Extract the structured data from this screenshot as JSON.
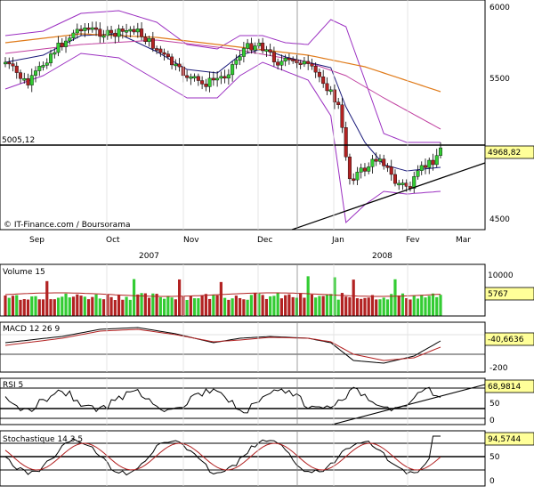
{
  "chart_data": {
    "type": "candlestick",
    "source": "© IT-Finance.com / Boursorama",
    "x_months": [
      "Sep",
      "Oct",
      "Nov",
      "Dec",
      "Jan",
      "Fev",
      "Mar"
    ],
    "x_years": [
      "2007",
      "2008"
    ],
    "price": {
      "yticks": [
        6000,
        5500,
        4500
      ],
      "hline_label": "5005,12",
      "last_label": "4968,82",
      "hline_value": 5005.12,
      "last_value": 4968.82,
      "ylim": [
        4400,
        6000
      ],
      "series_colors": {
        "up": "#33cc33",
        "down": "#b22222",
        "mm_long": "#e07b1a",
        "bollinger": "#9b2fc1",
        "mm_short": "#1a1a7a",
        "mm_mid": "#c040a0"
      }
    },
    "volume": {
      "title": "Volume 15",
      "ytick_label": "10000",
      "last_label": "5767"
    },
    "macd": {
      "title": "MACD 12 26 9",
      "last_label": "-40,6636",
      "ytick_label": "-200"
    },
    "rsi": {
      "title": "RSI 5",
      "last_label": "68,9814",
      "yticks": [
        "50",
        "0"
      ]
    },
    "stochastique": {
      "title": "Stochastique 14 3 5",
      "last_label": "94,5744",
      "yticks": [
        "50",
        "0"
      ]
    }
  }
}
